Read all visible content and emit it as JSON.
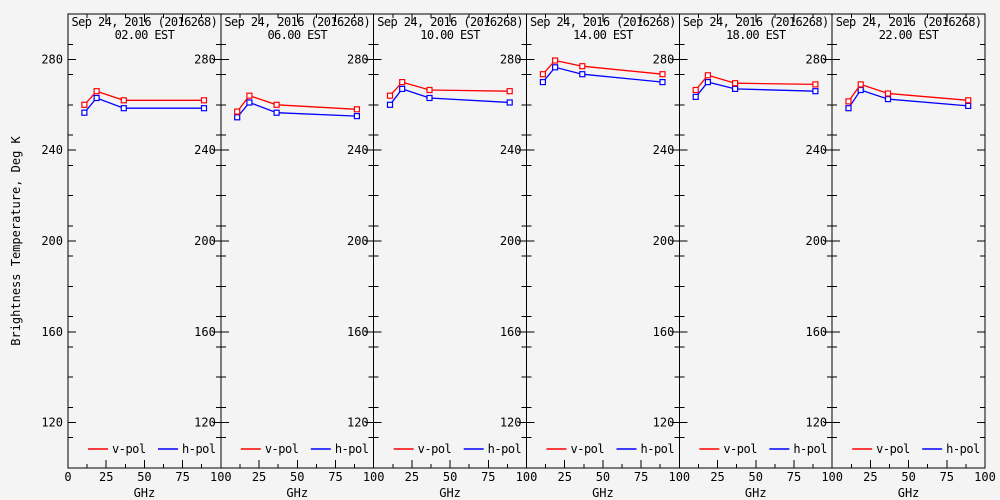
{
  "figure": {
    "background": "#f4f4f4",
    "axis_color": "#000000"
  },
  "chart_data": {
    "type": "line",
    "title": "Sep 24, 2016 (2016268)",
    "ylabel": "Brightness Temperature, Deg K",
    "xlabel": "GHz",
    "xlim": [
      0,
      100
    ],
    "ylim": [
      100,
      300
    ],
    "xticks": [
      0,
      25,
      50,
      75,
      100
    ],
    "yticks": [
      120,
      160,
      200,
      240,
      280
    ],
    "x": [
      10.7,
      18.7,
      36.5,
      89
    ],
    "legend": [
      {
        "label": "v-pol",
        "color": "#ff0000"
      },
      {
        "label": "h-pol",
        "color": "#0000ff"
      }
    ],
    "panels": [
      {
        "subtitle": "02.00 EST",
        "series": [
          {
            "name": "v-pol",
            "color": "#ff0000",
            "values": [
              260.0,
              266.0,
              262.0,
              262.0
            ]
          },
          {
            "name": "h-pol",
            "color": "#0000ff",
            "values": [
              256.5,
              263.0,
              258.5,
              258.5
            ]
          }
        ]
      },
      {
        "subtitle": "06.00 EST",
        "series": [
          {
            "name": "v-pol",
            "color": "#ff0000",
            "values": [
              257.0,
              264.0,
              260.0,
              258.0
            ]
          },
          {
            "name": "h-pol",
            "color": "#0000ff",
            "values": [
              254.5,
              261.0,
              256.5,
              255.0
            ]
          }
        ]
      },
      {
        "subtitle": "10.00 EST",
        "series": [
          {
            "name": "v-pol",
            "color": "#ff0000",
            "values": [
              264.0,
              270.0,
              266.5,
              266.0
            ]
          },
          {
            "name": "h-pol",
            "color": "#0000ff",
            "values": [
              260.0,
              267.0,
              263.0,
              261.0
            ]
          }
        ]
      },
      {
        "subtitle": "14.00 EST",
        "series": [
          {
            "name": "v-pol",
            "color": "#ff0000",
            "values": [
              273.5,
              279.5,
              277.0,
              273.5
            ]
          },
          {
            "name": "h-pol",
            "color": "#0000ff",
            "values": [
              270.0,
              276.5,
              273.5,
              270.0
            ]
          }
        ]
      },
      {
        "subtitle": "18.00 EST",
        "series": [
          {
            "name": "v-pol",
            "color": "#ff0000",
            "values": [
              266.5,
              273.0,
              269.5,
              269.0
            ]
          },
          {
            "name": "h-pol",
            "color": "#0000ff",
            "values": [
              263.5,
              270.0,
              267.0,
              266.0
            ]
          }
        ]
      },
      {
        "subtitle": "22.00 EST",
        "series": [
          {
            "name": "v-pol",
            "color": "#ff0000",
            "values": [
              261.5,
              269.0,
              265.0,
              262.0
            ]
          },
          {
            "name": "h-pol",
            "color": "#0000ff",
            "values": [
              258.5,
              266.5,
              262.5,
              259.5
            ]
          }
        ]
      }
    ]
  }
}
